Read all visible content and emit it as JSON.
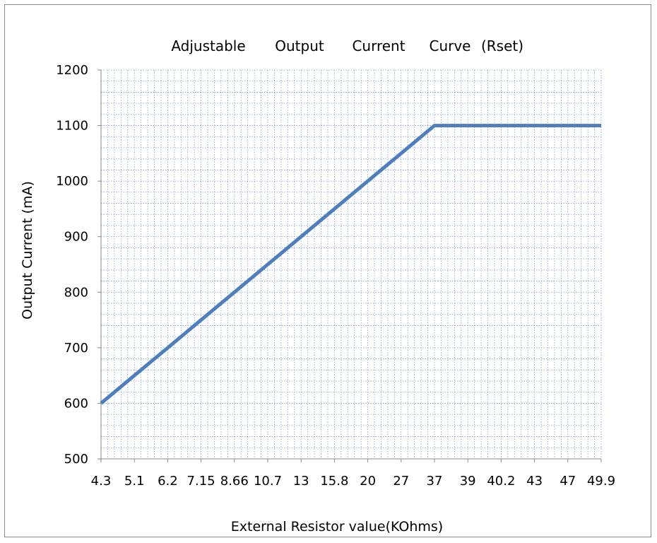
{
  "chart_data": {
    "type": "line",
    "title_words": [
      "Adjustable",
      "Output",
      "Current",
      "Curve",
      "(Rset)"
    ],
    "xlabel": "External Resistor value(KOhms)",
    "ylabel": "Output Current (mA)",
    "categories": [
      "4.3",
      "5.1",
      "6.2",
      "7.15",
      "8.66",
      "10.7",
      "13",
      "15.8",
      "20",
      "27",
      "37",
      "39",
      "40.2",
      "43",
      "47",
      "49.9"
    ],
    "y_ticks": [
      "500",
      "600",
      "700",
      "800",
      "900",
      "1000",
      "1100",
      "1200"
    ],
    "ylim": [
      500,
      1200
    ],
    "grid": true,
    "series": [
      {
        "color": "#4f7ebd",
        "values": [
          600,
          650,
          700,
          750,
          800,
          850,
          900,
          950,
          1000,
          1050,
          1100,
          1100,
          1100,
          1100,
          1100,
          1100
        ]
      }
    ]
  }
}
